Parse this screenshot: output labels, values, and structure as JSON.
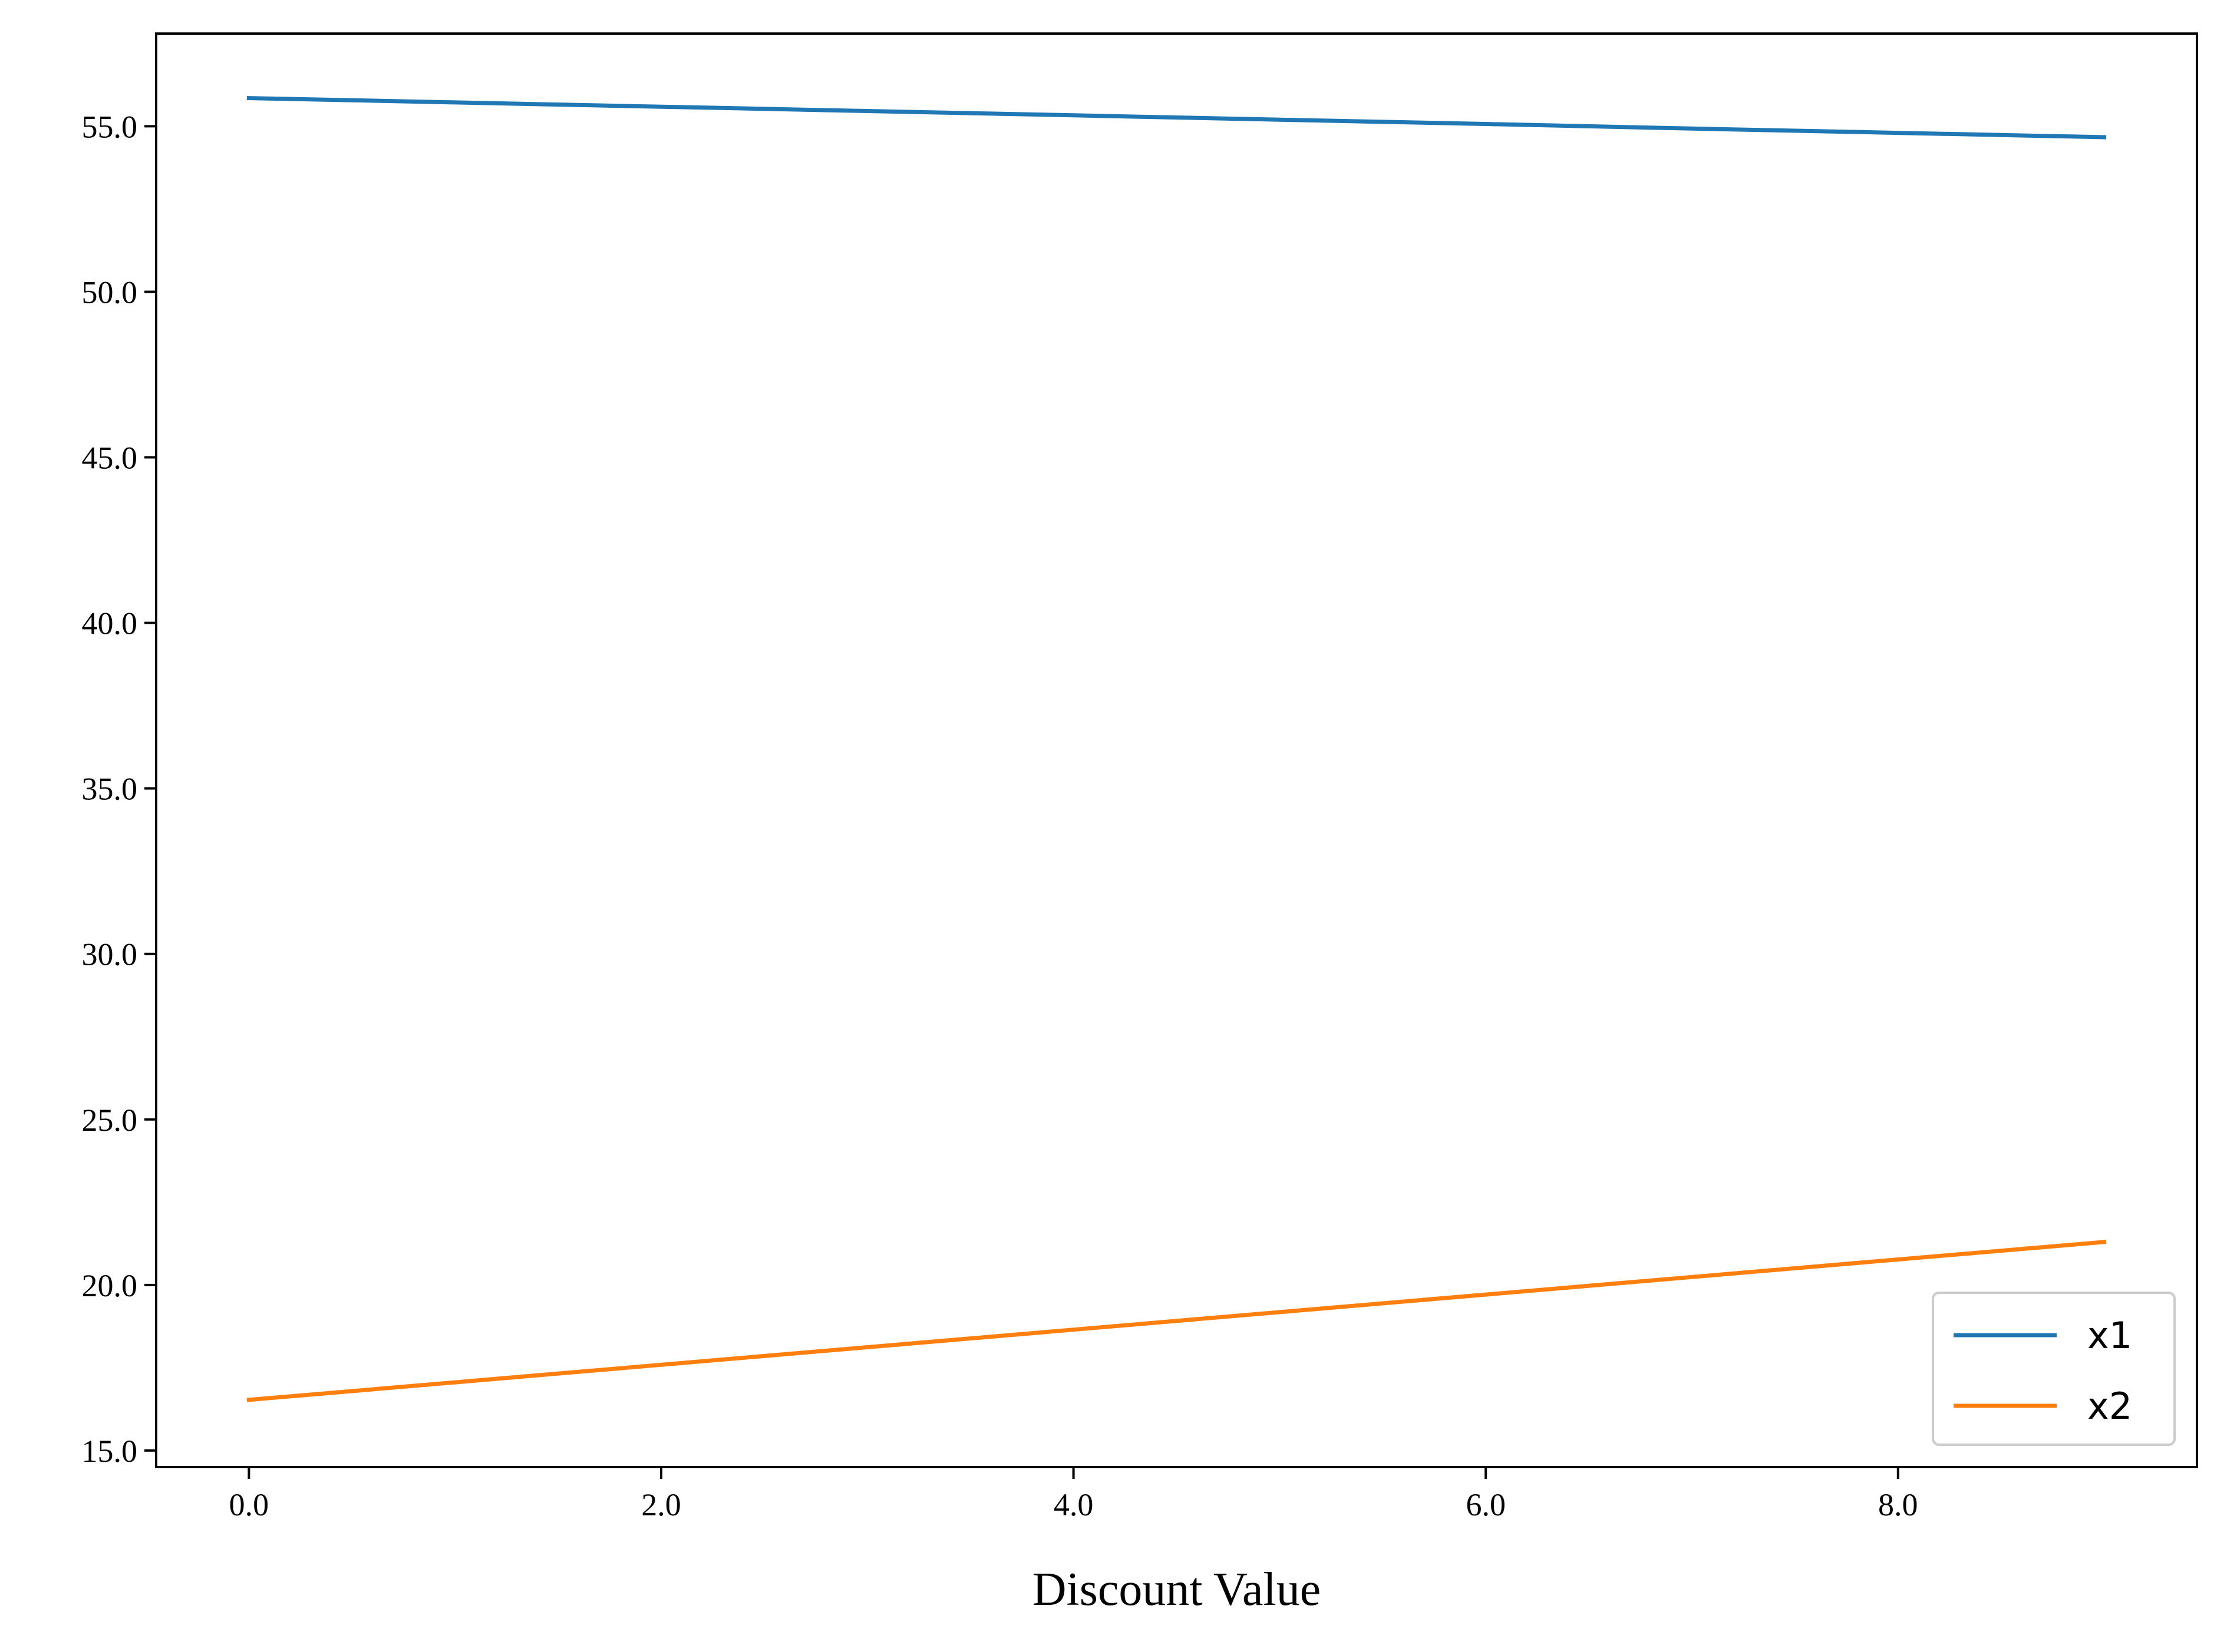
{
  "chart_data": {
    "type": "line",
    "title": "",
    "xlabel": "Discount Value",
    "ylabel": "",
    "x": [
      0,
      1,
      2,
      3,
      4,
      5,
      6,
      7,
      8,
      9
    ],
    "series": [
      {
        "name": "x1",
        "color": "#1f77b4",
        "values": [
          55.85,
          55.72,
          55.59,
          55.46,
          55.33,
          55.2,
          55.07,
          54.93,
          54.8,
          54.67
        ]
      },
      {
        "name": "x2",
        "color": "#ff7f0e",
        "values": [
          16.53,
          17.06,
          17.59,
          18.12,
          18.65,
          19.18,
          19.71,
          20.24,
          20.77,
          21.3
        ]
      }
    ],
    "xlim": [
      -0.45,
      9.45
    ],
    "ylim": [
      14.5,
      57.8
    ],
    "xticks": [
      0,
      2,
      4,
      6,
      8
    ],
    "xtick_labels": [
      "0.0",
      "2.0",
      "4.0",
      "6.0",
      "8.0"
    ],
    "yticks": [
      15,
      20,
      25,
      30,
      35,
      40,
      45,
      50,
      55
    ],
    "ytick_labels": [
      "15.0",
      "20.0",
      "25.0",
      "30.0",
      "35.0",
      "40.0",
      "45.0",
      "50.0",
      "55.0"
    ],
    "grid": false,
    "legend_position": "lower right"
  }
}
